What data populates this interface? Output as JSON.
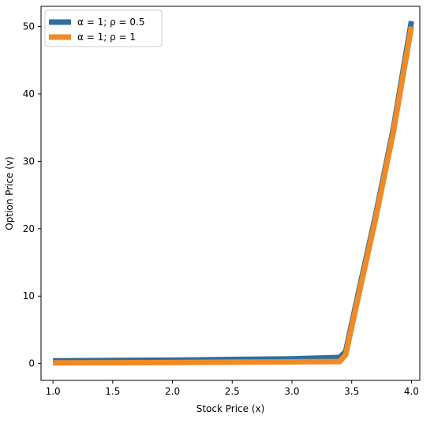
{
  "chart_data": {
    "type": "line",
    "title": "",
    "xlabel": "Stock Price (x)",
    "ylabel": "Option Price (v)",
    "xlim": [
      0.9,
      4.07
    ],
    "ylim": [
      -2.5,
      53.0
    ],
    "xticks": [
      1.0,
      1.5,
      2.0,
      2.5,
      3.0,
      3.5,
      4.0
    ],
    "xtick_labels": [
      "1.0",
      "1.5",
      "2.0",
      "2.5",
      "3.0",
      "3.5",
      "4.0"
    ],
    "yticks": [
      0,
      10,
      20,
      30,
      40,
      50
    ],
    "ytick_labels": [
      "0",
      "10",
      "20",
      "30",
      "40",
      "50"
    ],
    "grid": false,
    "legend_position": "upper-left",
    "series": [
      {
        "name": "α = 1; ρ = 0.5",
        "color": "#2c6e9e",
        "x": [
          1.0,
          1.5,
          2.0,
          2.5,
          3.0,
          3.4,
          3.45,
          3.55,
          3.7,
          3.85,
          4.0
        ],
        "y": [
          0.4,
          0.45,
          0.5,
          0.6,
          0.7,
          0.9,
          1.8,
          10.0,
          22.0,
          35.0,
          50.8
        ]
      },
      {
        "name": "α = 1; ρ = 1",
        "color": "#f08a24",
        "x": [
          1.0,
          1.5,
          2.0,
          2.5,
          3.0,
          3.4,
          3.45,
          3.55,
          3.7,
          3.85,
          4.0
        ],
        "y": [
          0.1,
          0.12,
          0.15,
          0.2,
          0.25,
          0.3,
          1.3,
          9.5,
          21.5,
          34.5,
          50.0
        ]
      }
    ]
  }
}
